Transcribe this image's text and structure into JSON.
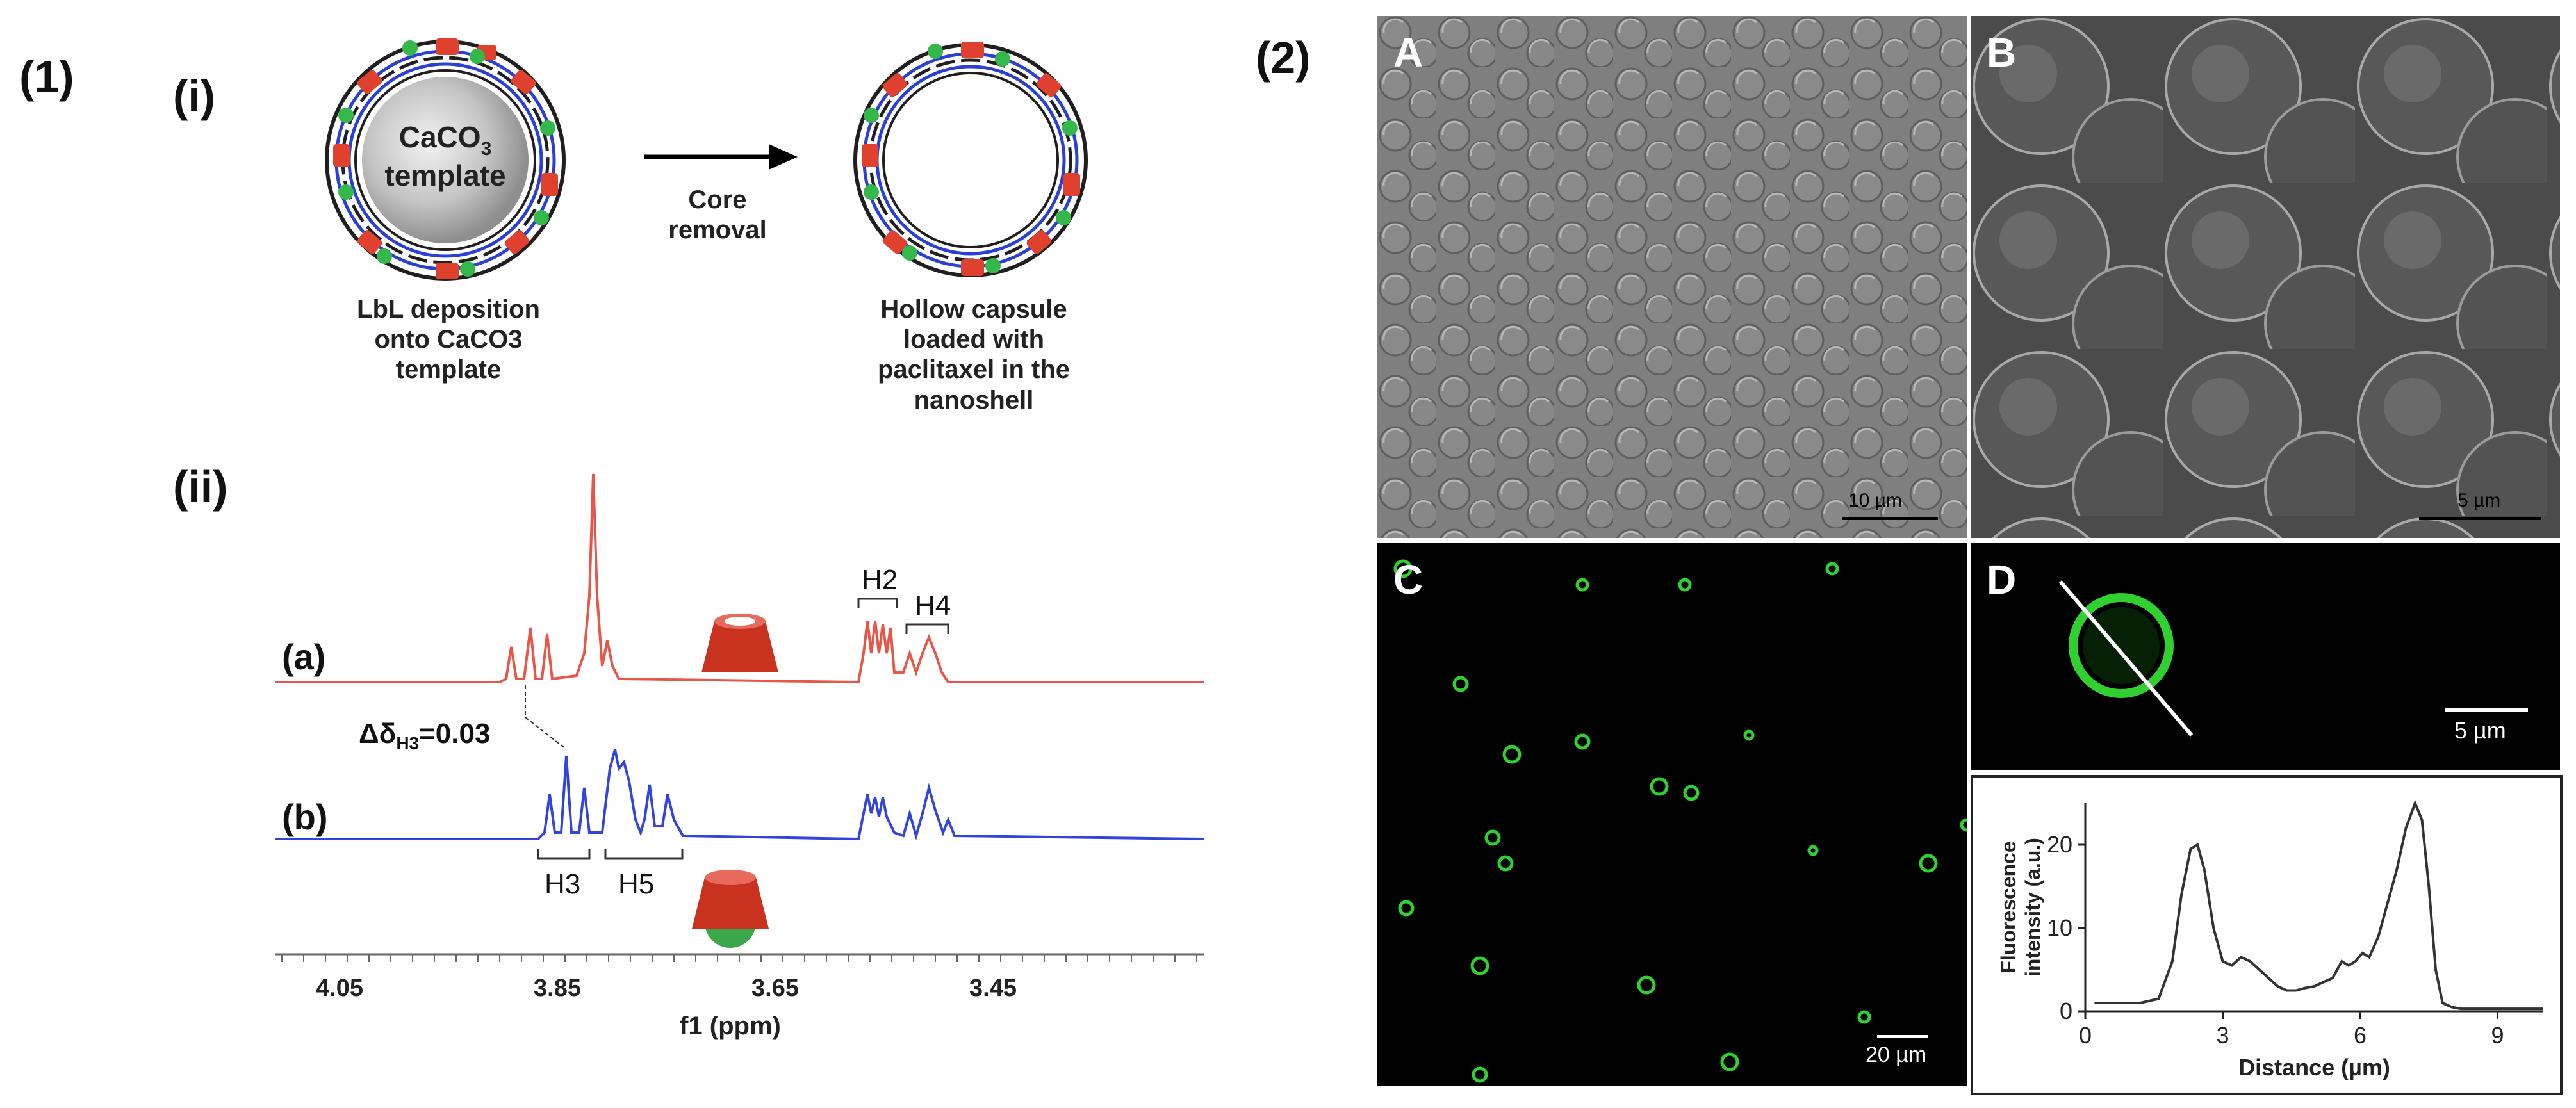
{
  "labels": {
    "part1": "(1)",
    "part2": "(2)",
    "sub_i": "(i)",
    "sub_ii": "(ii)"
  },
  "schematic": {
    "template_text": "CaCO",
    "template_sub": "3",
    "template_text2": "template",
    "arrow_label_line1": "Core",
    "arrow_label_line2": "removal",
    "left_caption": [
      "LbL deposition",
      "onto CaCO3",
      "template"
    ],
    "right_caption": [
      "Hollow capsule",
      "loaded with",
      "paclitaxel in the",
      "nanoshell"
    ]
  },
  "nmr": {
    "spectrum_a_label": "(a)",
    "spectrum_b_label": "(b)",
    "shift_annotation": "Δδ",
    "shift_sub": "H3",
    "shift_value": "=0.03",
    "peaks": {
      "h2": "H2",
      "h4": "H4",
      "h3": "H3",
      "h5": "H5"
    },
    "x_ticks": [
      "4.05",
      "3.85",
      "3.65",
      "3.45"
    ],
    "x_label": "f1 (ppm)",
    "colors": {
      "a": "#e8564a",
      "b": "#3344dd"
    }
  },
  "micrographs": {
    "A": {
      "letter": "A",
      "scale": "10 µm"
    },
    "B": {
      "letter": "B",
      "scale": "5 µm"
    },
    "C": {
      "letter": "C",
      "scale": "20 µm"
    },
    "D": {
      "letter": "D",
      "scale": "5 µm"
    }
  },
  "chart_data": {
    "type": "line",
    "xlabel": "Distance (µm)",
    "ylabel": "Fluorescence intensity (a.u.)",
    "xlim": [
      0,
      10
    ],
    "ylim": [
      0,
      25
    ],
    "x_ticks": [
      "0",
      "3",
      "6",
      "9"
    ],
    "y_ticks": [
      "0",
      "10",
      "20"
    ],
    "x": [
      0.2,
      0.8,
      1.2,
      1.6,
      1.9,
      2.1,
      2.3,
      2.45,
      2.6,
      2.8,
      3.0,
      3.2,
      3.4,
      3.6,
      3.8,
      4.0,
      4.2,
      4.4,
      4.6,
      4.8,
      5.0,
      5.2,
      5.4,
      5.6,
      5.75,
      5.9,
      6.05,
      6.2,
      6.4,
      6.6,
      6.8,
      7.0,
      7.2,
      7.35,
      7.5,
      7.65,
      7.8,
      8.0,
      8.2,
      8.5,
      9.0,
      10.0
    ],
    "y": [
      1,
      1,
      1,
      1.5,
      6,
      14,
      19.5,
      20,
      17,
      10,
      6,
      5.5,
      6.5,
      6,
      5,
      4,
      3,
      2.5,
      2.5,
      2.8,
      3,
      3.5,
      4,
      6,
      5.5,
      6,
      7,
      6.5,
      9,
      13,
      17,
      22,
      25,
      23,
      15,
      5,
      1,
      0.5,
      0.3,
      0.3,
      0.3,
      0.3
    ],
    "line_color": "#333333"
  }
}
